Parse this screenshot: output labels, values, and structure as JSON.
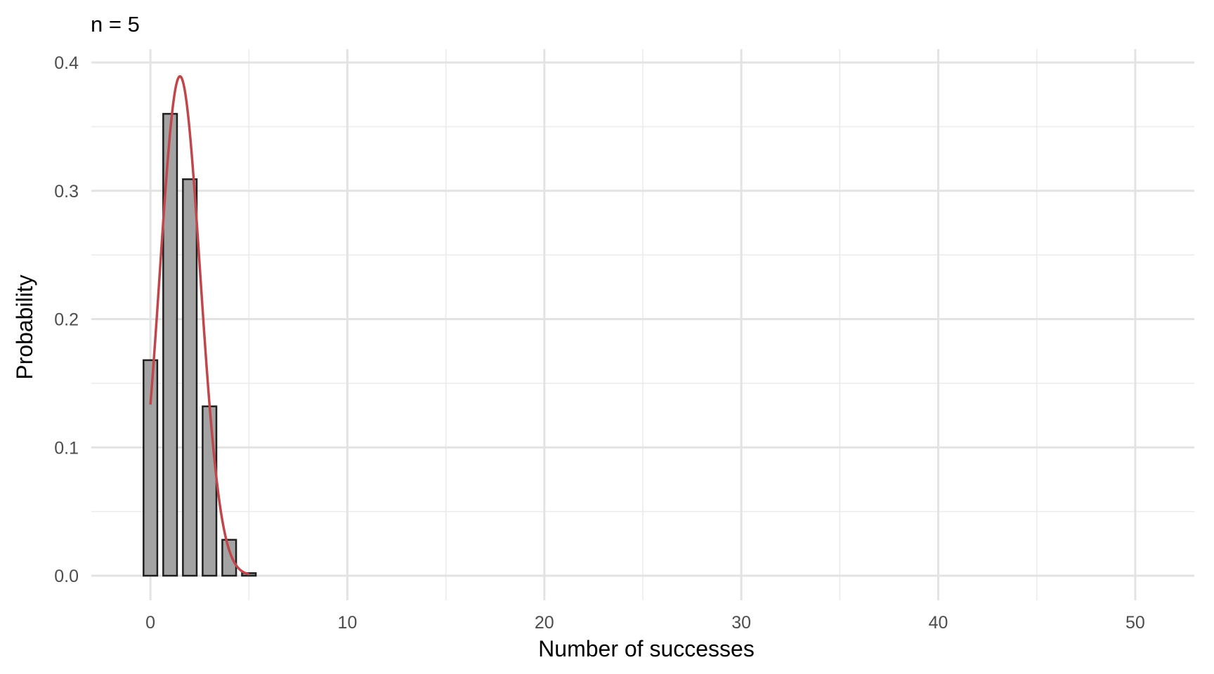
{
  "chart_data": {
    "type": "bar",
    "title": "n = 5",
    "xlabel": "Number of successes",
    "ylabel": "Probability",
    "xlim": [
      -3,
      53
    ],
    "ylim": [
      0,
      0.4
    ],
    "x_ticks": [
      0,
      10,
      20,
      30,
      40,
      50
    ],
    "y_ticks": [
      0.0,
      0.1,
      0.2,
      0.3,
      0.4
    ],
    "x_tick_labels": [
      "0",
      "10",
      "20",
      "30",
      "40",
      "50"
    ],
    "y_tick_labels": [
      "0.0",
      "0.1",
      "0.2",
      "0.3",
      "0.4"
    ],
    "grid": true,
    "legend": "none",
    "bars": {
      "x": [
        0,
        1,
        2,
        3,
        4,
        5
      ],
      "values": [
        0.168,
        0.36,
        0.309,
        0.132,
        0.028,
        0.002
      ],
      "fill": "#a3a3a3",
      "outline": "#1f1f1f"
    },
    "curve": {
      "type": "line",
      "x_start": 0,
      "x_end": 5,
      "mean": 1.5,
      "sd": 1.025,
      "color": "#c1464c"
    }
  }
}
